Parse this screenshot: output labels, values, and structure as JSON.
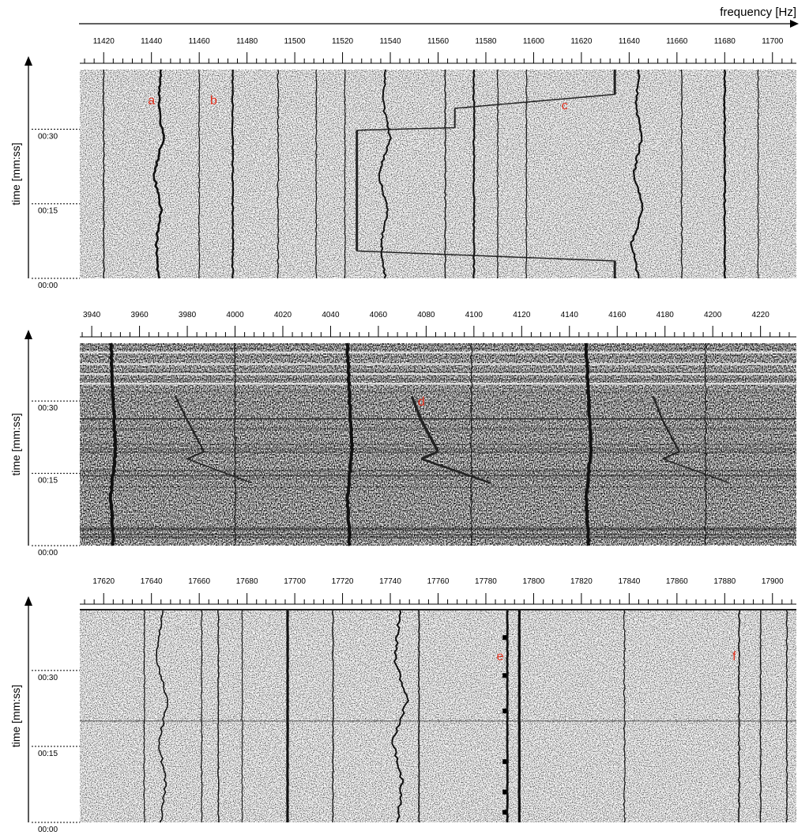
{
  "header": {
    "xlabel": "frequency [Hz]"
  },
  "colors": {
    "annotation": "#e0301e",
    "ink": "#000000",
    "noise_dark": "#3a3a3a",
    "noise_light": "#9a9a9a"
  },
  "chart_data": [
    {
      "type": "heatmap",
      "xlabel": "frequency [Hz]",
      "ylabel": "time [mm:ss]",
      "xlim": [
        11410,
        11710
      ],
      "ylim": [
        0,
        42
      ],
      "tick_labels": [
        "11420",
        "11440",
        "11460",
        "11480",
        "11500",
        "11520",
        "11540",
        "11560",
        "11580",
        "11600",
        "11620",
        "11640",
        "11660",
        "11680",
        "11700"
      ],
      "tick_values": [
        11420,
        11440,
        11460,
        11480,
        11500,
        11520,
        11540,
        11560,
        11580,
        11600,
        11620,
        11640,
        11660,
        11680,
        11700
      ],
      "time_labels": [
        "00:30",
        "00:15",
        "00:00"
      ],
      "time_values": [
        30,
        15,
        0
      ],
      "annotations": [
        {
          "text": "a",
          "x": 11440,
          "y": 35
        },
        {
          "text": "b",
          "x": 11466,
          "y": 35
        },
        {
          "text": "c",
          "x": 11613,
          "y": 34
        }
      ],
      "traces": [
        {
          "x": [
            11420,
            11420
          ],
          "y": [
            0,
            42
          ],
          "w": 1.4,
          "wig": 0.8
        },
        {
          "x": [
            11443,
            11442,
            11444,
            11441,
            11445,
            11443,
            11444
          ],
          "y": [
            0,
            7,
            14,
            21,
            28,
            35,
            42
          ],
          "w": 2.6,
          "wig": 1.4
        },
        {
          "x": [
            11460,
            11460
          ],
          "y": [
            0,
            42
          ],
          "w": 1.2,
          "wig": 0.6
        },
        {
          "x": [
            11474,
            11474
          ],
          "y": [
            0,
            42
          ],
          "w": 2.2,
          "wig": 0.8
        },
        {
          "x": [
            11493,
            11493
          ],
          "y": [
            0,
            42
          ],
          "w": 1.3,
          "wig": 0.8
        },
        {
          "x": [
            11509,
            11509
          ],
          "y": [
            0,
            42
          ],
          "w": 1.2,
          "wig": 0.6
        },
        {
          "x": [
            11521,
            11521
          ],
          "y": [
            0,
            42
          ],
          "w": 1.2,
          "wig": 0.6
        },
        {
          "x": [
            11538,
            11536,
            11539,
            11535,
            11540,
            11537,
            11538
          ],
          "y": [
            0,
            7,
            14,
            21,
            28,
            35,
            42
          ],
          "w": 2.0,
          "wig": 1.4
        },
        {
          "x": [
            11563,
            11563
          ],
          "y": [
            0,
            42
          ],
          "w": 1.4,
          "wig": 0.8
        },
        {
          "x": [
            11575,
            11575
          ],
          "y": [
            0,
            42
          ],
          "w": 2.2,
          "wig": 0.8
        },
        {
          "x": [
            11585,
            11585
          ],
          "y": [
            0,
            42
          ],
          "w": 1.2,
          "wig": 0.6
        },
        {
          "x": [
            11597,
            11597
          ],
          "y": [
            0,
            42
          ],
          "w": 1.2,
          "wig": 0.6
        },
        {
          "x": [
            11644,
            11641,
            11646,
            11642,
            11645,
            11643,
            11644
          ],
          "y": [
            0,
            7,
            14,
            21,
            28,
            35,
            42
          ],
          "w": 2.2,
          "wig": 1.4
        },
        {
          "x": [
            11662,
            11662
          ],
          "y": [
            0,
            42
          ],
          "w": 1.3,
          "wig": 0.8
        },
        {
          "x": [
            11680,
            11680
          ],
          "y": [
            0,
            42
          ],
          "w": 2.4,
          "wig": 0.8
        },
        {
          "x": [
            11694,
            11694
          ],
          "y": [
            0,
            42
          ],
          "w": 1.2,
          "wig": 0.6
        }
      ],
      "polylines": [
        {
          "x": [
            11634,
            11634
          ],
          "y": [
            0,
            3.5
          ],
          "w": 3
        },
        {
          "x": [
            11634,
            11526
          ],
          "y": [
            3.5,
            5.5
          ],
          "w": 1.5
        },
        {
          "x": [
            11526,
            11526
          ],
          "y": [
            5.5,
            29.8
          ],
          "w": 3
        },
        {
          "x": [
            11526,
            11567
          ],
          "y": [
            29.8,
            30.3
          ],
          "w": 1.5
        },
        {
          "x": [
            11567,
            11567
          ],
          "y": [
            30.3,
            34.2
          ],
          "w": 2
        },
        {
          "x": [
            11567,
            11634
          ],
          "y": [
            34.2,
            37
          ],
          "w": 1.5
        },
        {
          "x": [
            11634,
            11634
          ],
          "y": [
            37,
            42
          ],
          "w": 3
        }
      ]
    },
    {
      "type": "heatmap",
      "xlabel": "",
      "ylabel": "time [mm:ss]",
      "xlim": [
        3935,
        4235
      ],
      "ylim": [
        0,
        42
      ],
      "dense": true,
      "tick_labels": [
        "3940",
        "3960",
        "3980",
        "4000",
        "4020",
        "4040",
        "4060",
        "4080",
        "4100",
        "4120",
        "4140",
        "4160",
        "4180",
        "4200",
        "4220"
      ],
      "tick_values": [
        3940,
        3960,
        3980,
        4000,
        4020,
        4040,
        4060,
        4080,
        4100,
        4120,
        4140,
        4160,
        4180,
        4200,
        4220
      ],
      "time_labels": [
        "00:30",
        "00:15",
        "00:00"
      ],
      "time_values": [
        30,
        15,
        0
      ],
      "annotations": [
        {
          "text": "d",
          "x": 4078,
          "y": 29
        }
      ],
      "traces": [
        {
          "x": [
            3949,
            3948,
            3950,
            3949,
            3948
          ],
          "y": [
            0,
            10,
            20,
            30,
            42
          ],
          "w": 4,
          "wig": 0.8
        },
        {
          "x": [
            4048,
            4047,
            4049,
            4048,
            4047
          ],
          "y": [
            0,
            10,
            20,
            30,
            42
          ],
          "w": 4,
          "wig": 0.8
        },
        {
          "x": [
            4148,
            4147,
            4149,
            4148,
            4147
          ],
          "y": [
            0,
            10,
            20,
            30,
            42
          ],
          "w": 4,
          "wig": 0.8
        },
        {
          "x": [
            4000,
            4000
          ],
          "y": [
            0,
            42
          ],
          "w": 1.2,
          "wig": 1
        },
        {
          "x": [
            4099,
            4099
          ],
          "y": [
            0,
            42
          ],
          "w": 1.2,
          "wig": 1
        },
        {
          "x": [
            4197,
            4197
          ],
          "y": [
            0,
            42
          ],
          "w": 1.2,
          "wig": 1
        }
      ],
      "polylines": [
        {
          "x": [
            3975,
            3980,
            3987
          ],
          "y": [
            31,
            26,
            19.5
          ],
          "w": 2.2
        },
        {
          "x": [
            3987,
            3980
          ],
          "y": [
            19.5,
            18
          ],
          "w": 2
        },
        {
          "x": [
            3980,
            4007
          ],
          "y": [
            18,
            13
          ],
          "w": 1.5
        },
        {
          "x": [
            4074,
            4078,
            4085
          ],
          "y": [
            31,
            26,
            19.5
          ],
          "w": 3.5
        },
        {
          "x": [
            4085,
            4078
          ],
          "y": [
            19.5,
            18
          ],
          "w": 3
        },
        {
          "x": [
            4078,
            4107
          ],
          "y": [
            18,
            13
          ],
          "w": 2.5
        },
        {
          "x": [
            4175,
            4179,
            4186
          ],
          "y": [
            31,
            26,
            19.5
          ],
          "w": 2.2
        },
        {
          "x": [
            4186,
            4179
          ],
          "y": [
            19.5,
            18
          ],
          "w": 2
        },
        {
          "x": [
            4179,
            4207
          ],
          "y": [
            18,
            13
          ],
          "w": 1.5
        },
        {
          "x": [
            3935,
            4235
          ],
          "y": [
            26.3,
            26.3
          ],
          "w": 1.4
        }
      ]
    },
    {
      "type": "heatmap",
      "xlabel": "",
      "ylabel": "time [mm:ss]",
      "xlim": [
        17610,
        17910
      ],
      "ylim": [
        0,
        42
      ],
      "tick_labels": [
        "17620",
        "17640",
        "17660",
        "17680",
        "17700",
        "17720",
        "17740",
        "17760",
        "17780",
        "17800",
        "17820",
        "17840",
        "17860",
        "17880",
        "17900"
      ],
      "tick_values": [
        17620,
        17640,
        17660,
        17680,
        17700,
        17720,
        17740,
        17760,
        17780,
        17800,
        17820,
        17840,
        17860,
        17880,
        17900
      ],
      "time_labels": [
        "00:30",
        "00:15",
        "00:00"
      ],
      "time_values": [
        30,
        15,
        0
      ],
      "annotations": [
        {
          "text": "e",
          "x": 17786,
          "y": 32
        },
        {
          "text": "f",
          "x": 17884,
          "y": 32
        }
      ],
      "traces": [
        {
          "x": [
            17637,
            17637
          ],
          "y": [
            0,
            42
          ],
          "w": 1.2,
          "wig": 0.6
        },
        {
          "x": [
            17644,
            17646,
            17643,
            17647,
            17642,
            17645
          ],
          "y": [
            0,
            8,
            16,
            24,
            32,
            42
          ],
          "w": 1.6,
          "wig": 1.6
        },
        {
          "x": [
            17661,
            17661
          ],
          "y": [
            0,
            42
          ],
          "w": 1.2,
          "wig": 0.6
        },
        {
          "x": [
            17668,
            17668
          ],
          "y": [
            0,
            42
          ],
          "w": 1.4,
          "wig": 0.6
        },
        {
          "x": [
            17678,
            17678
          ],
          "y": [
            0,
            42
          ],
          "w": 1.1,
          "wig": 0.6
        },
        {
          "x": [
            17697,
            17697
          ],
          "y": [
            0,
            42
          ],
          "w": 3.2,
          "wig": 0.2
        },
        {
          "x": [
            17716,
            17716
          ],
          "y": [
            0,
            42
          ],
          "w": 1.4,
          "wig": 0.6
        },
        {
          "x": [
            17743,
            17745,
            17741,
            17747,
            17742,
            17744
          ],
          "y": [
            0,
            8,
            16,
            24,
            32,
            42
          ],
          "w": 2.0,
          "wig": 1.8
        },
        {
          "x": [
            17752,
            17752
          ],
          "y": [
            0,
            42
          ],
          "w": 1.6,
          "wig": 0.4
        },
        {
          "x": [
            17789,
            17789
          ],
          "y": [
            0,
            42
          ],
          "w": 2.8,
          "wig": 0.3
        },
        {
          "x": [
            17794,
            17794
          ],
          "y": [
            0,
            42
          ],
          "w": 3.2,
          "wig": 0.2
        },
        {
          "x": [
            17838,
            17838
          ],
          "y": [
            0,
            42
          ],
          "w": 1.2,
          "wig": 1.0
        },
        {
          "x": [
            17886,
            17886
          ],
          "y": [
            0,
            42
          ],
          "w": 1.6,
          "wig": 0.8
        },
        {
          "x": [
            17895,
            17895
          ],
          "y": [
            0,
            42
          ],
          "w": 1.4,
          "wig": 0.6
        },
        {
          "x": [
            17906,
            17906
          ],
          "y": [
            0,
            42
          ],
          "w": 1.4,
          "wig": 0.6
        }
      ],
      "polylines": [
        {
          "x": [
            17610,
            17910
          ],
          "y": [
            42,
            42
          ],
          "w": 2
        },
        {
          "x": [
            17610,
            17910
          ],
          "y": [
            20,
            20
          ],
          "w": 0.8
        }
      ]
    }
  ]
}
